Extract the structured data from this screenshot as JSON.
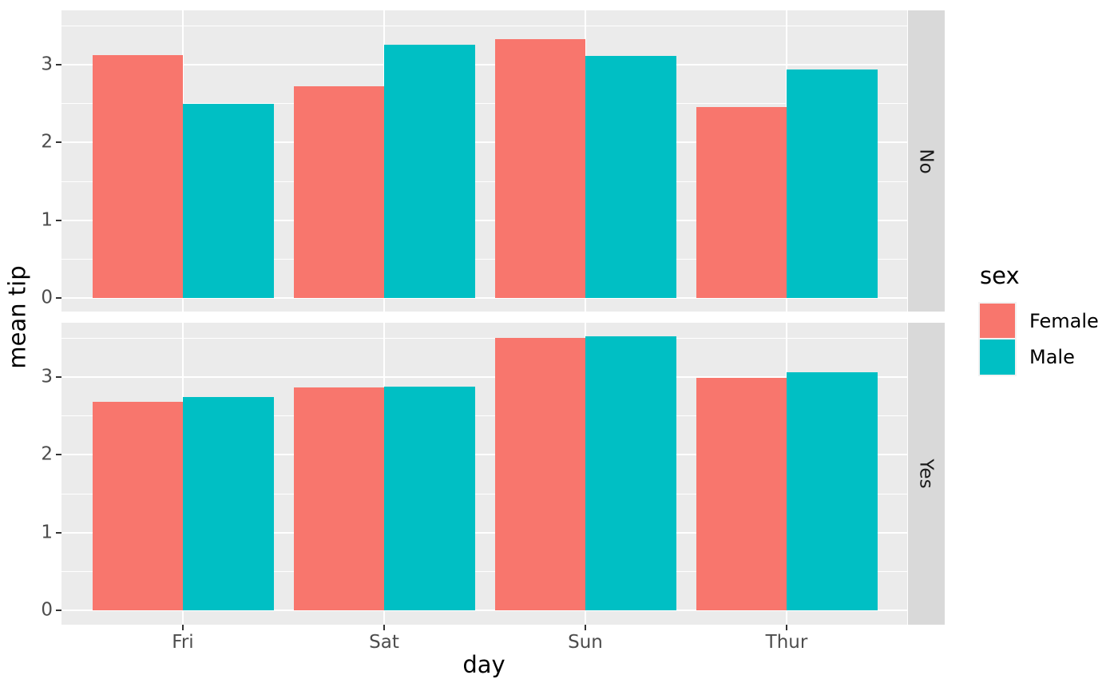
{
  "figure": {
    "x_axis_title": "day",
    "y_axis_title": "mean tip",
    "y_tick_labels": [
      "0",
      "1",
      "2",
      "3"
    ],
    "x_tick_labels": [
      "Fri",
      "Sat",
      "Sun",
      "Thur"
    ]
  },
  "legend": {
    "title": "sex",
    "entries": [
      {
        "label": "Female",
        "color": "#F8766D"
      },
      {
        "label": "Male",
        "color": "#00BFC4"
      }
    ]
  },
  "chart_data": {
    "type": "bar",
    "title": "",
    "xlabel": "day",
    "ylabel": "mean tip",
    "categories": [
      "Fri",
      "Sat",
      "Sun",
      "Thur"
    ],
    "facet_labels": [
      "No",
      "Yes"
    ],
    "facets": [
      {
        "label": "No",
        "series": [
          {
            "name": "Female",
            "values": [
              3.125,
              2.725,
              3.329,
              2.46
            ]
          },
          {
            "name": "Male",
            "values": [
              2.5,
              3.257,
              3.115,
              2.942
            ]
          }
        ]
      },
      {
        "label": "Yes",
        "series": [
          {
            "name": "Female",
            "values": [
              2.682,
              2.869,
              3.5,
              2.99
            ]
          },
          {
            "name": "Male",
            "values": [
              2.741,
              2.879,
              3.521,
              3.058
            ]
          }
        ]
      }
    ],
    "ylim": [
      0,
      3.7
    ],
    "y_major_ticks": [
      0,
      1,
      2,
      3
    ],
    "y_minor_ticks": [
      0.5,
      1.5,
      2.5,
      3.5
    ],
    "grid": "on",
    "legend_position": "right",
    "colors": {
      "Female": "#F8766D",
      "Male": "#00BFC4"
    }
  },
  "style": {
    "panel_bg": "#EBEBEB",
    "strip_bg": "#D9D9D9",
    "grid_color": "#FFFFFF",
    "tick_mark_color": "#333333",
    "tick_label_color": "#4D4D4D",
    "strip_text_color": "#1A1A1A"
  }
}
